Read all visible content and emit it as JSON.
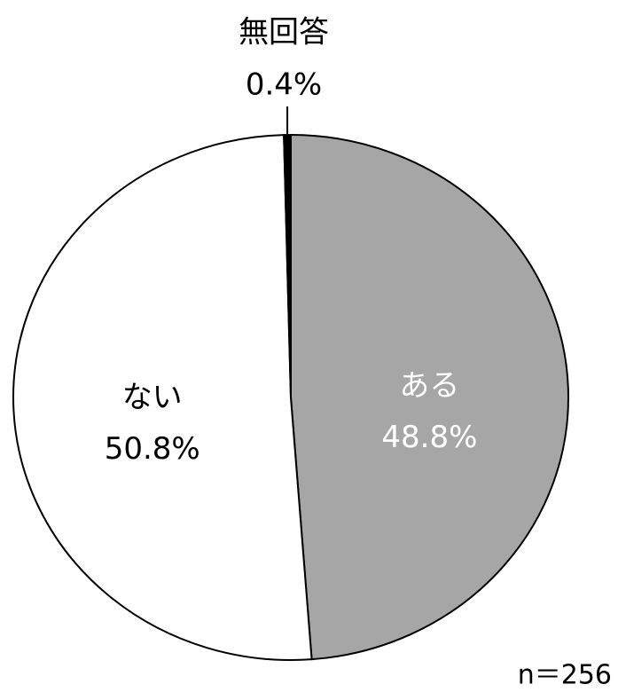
{
  "chart_data": {
    "type": "pie",
    "categories": [
      "ある",
      "ない",
      "無回答"
    ],
    "values": [
      48.8,
      50.8,
      0.4
    ],
    "value_labels": [
      "48.8%",
      "50.8%",
      "0.4%"
    ],
    "colors": [
      "#a6a6a6",
      "#ffffff",
      "#000000"
    ],
    "label_colors": [
      "#ffffff",
      "#000000",
      "#000000"
    ],
    "annotation": "n＝256"
  }
}
